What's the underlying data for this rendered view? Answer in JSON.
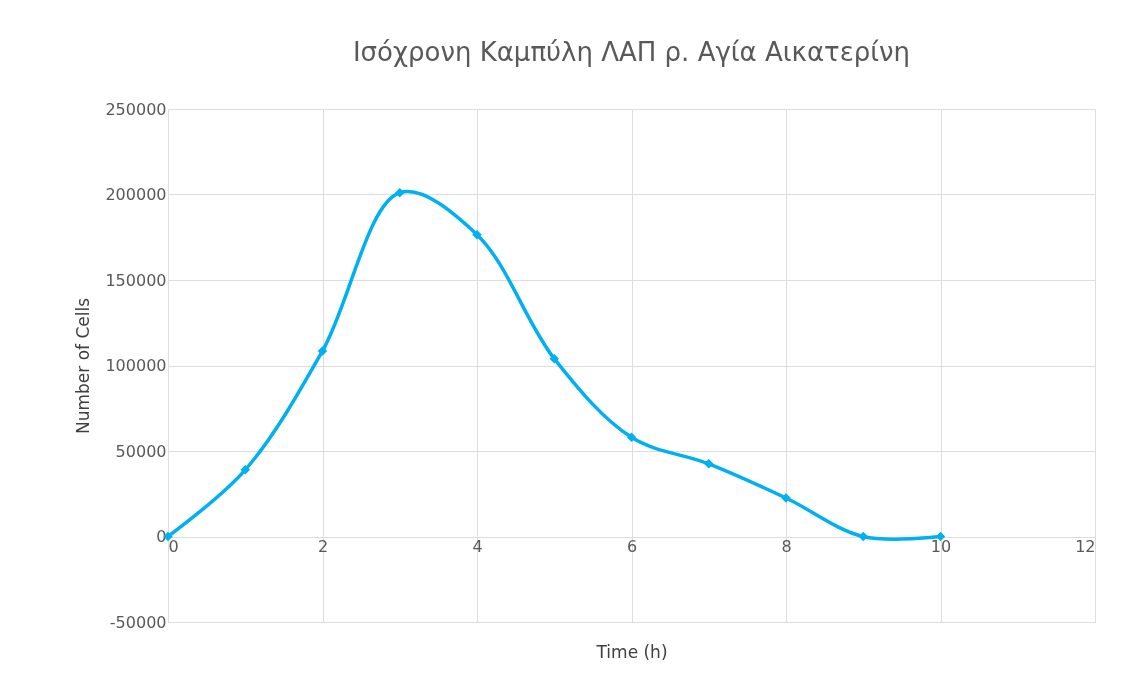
{
  "chart_data": {
    "type": "line",
    "title": "Ισόχρονη Καμπύλη ΛΑΠ ρ. Αγία Αικατερίνη",
    "xlabel": "Time (h)",
    "ylabel": "Number of Cells",
    "x": [
      0,
      1,
      2,
      3,
      4,
      5,
      6,
      7,
      8,
      9,
      10
    ],
    "series": [
      {
        "color": "#00b0f0",
        "values": [
          0,
          39000,
          108500,
          201000,
          176500,
          104000,
          58000,
          42500,
          22500,
          0,
          0
        ]
      }
    ],
    "xlim": [
      0,
      12
    ],
    "xticks": [
      0,
      2,
      4,
      6,
      8,
      10,
      12
    ],
    "ylim": [
      -50000,
      250000
    ],
    "yticks": [
      -50000,
      0,
      50000,
      100000,
      150000,
      200000,
      250000
    ],
    "grid": true,
    "marker": "diamond"
  }
}
